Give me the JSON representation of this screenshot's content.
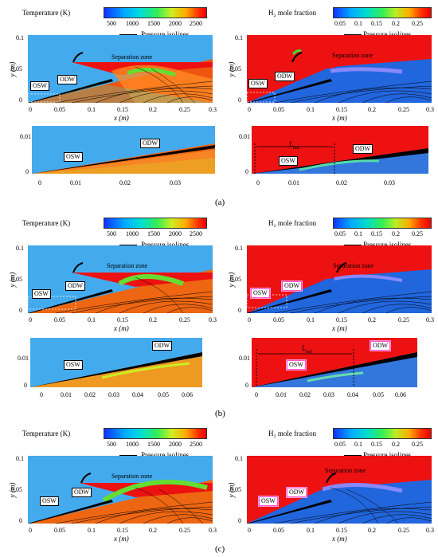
{
  "legend": {
    "temperature_title": "Temperature (K)",
    "temperature_ticks": [
      "500",
      "1000",
      "1500",
      "2000",
      "2500"
    ],
    "h2_title": "H₂ mole fraction",
    "h2_ticks": [
      "0.05",
      "0.1",
      "0.15",
      "0.2",
      "0.25"
    ],
    "pressure_label": "Pressure isolines"
  },
  "axes": {
    "x_label": "x (m)",
    "y_label": "y (m)",
    "main_x_ticks": [
      "0",
      "0.05",
      "0.1",
      "0.15",
      "0.2",
      "0.25",
      "0.3"
    ],
    "main_y_ticks": [
      "0.1",
      "0.05",
      "0"
    ],
    "inset_a_left_x_ticks": [
      "0",
      "0.01",
      "0.02",
      "0.03"
    ],
    "inset_a_right_x_ticks": [
      "0",
      "0.01",
      "0.02",
      "0.03"
    ],
    "inset_y_ticks": [
      "0.01",
      "0"
    ],
    "inset_b_x_ticks": [
      "0",
      "0.01",
      "0.02",
      "0.03",
      "0.04",
      "0.05",
      "0.06"
    ]
  },
  "annotations": {
    "osw": "OSW",
    "odw": "ODW",
    "separation": "Separation zone",
    "lind": "L",
    "lind_sub": "ind"
  },
  "captions": {
    "a": "(a)",
    "b": "(b)",
    "c": "(c)"
  },
  "colors": {
    "background_blue": "#44aaee",
    "h2_red": "#ee1111",
    "burn_orange": "#ee6611",
    "pink_accent": "#ff55cc"
  }
}
